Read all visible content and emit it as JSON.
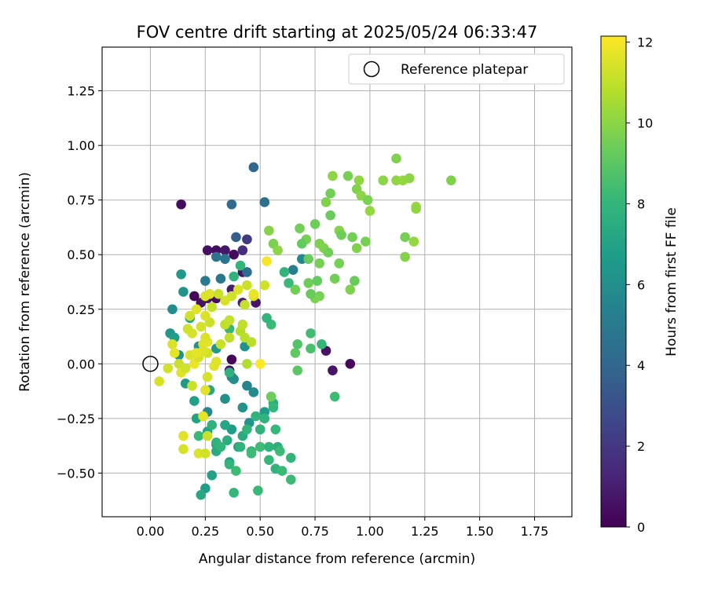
{
  "chart_data": {
    "type": "scatter",
    "title": "FOV centre drift starting at 2025/05/24 06:33:47",
    "xlabel": "Angular distance from reference (arcmin)",
    "ylabel": "Rotation from reference (arcmin)",
    "xlim": [
      -0.22,
      1.92
    ],
    "ylim": [
      -0.7,
      1.45
    ],
    "xticks": [
      0.0,
      0.25,
      0.5,
      0.75,
      1.0,
      1.25,
      1.5,
      1.75
    ],
    "xtick_labels": [
      "0.00",
      "0.25",
      "0.50",
      "0.75",
      "1.00",
      "1.25",
      "1.50",
      "1.75"
    ],
    "yticks": [
      -0.5,
      -0.25,
      0.0,
      0.25,
      0.5,
      0.75,
      1.0,
      1.25
    ],
    "ytick_labels": [
      "−0.50",
      "−0.25",
      "0.00",
      "0.25",
      "0.50",
      "0.75",
      "1.00",
      "1.25"
    ],
    "grid": true,
    "legend": {
      "position": "top-right",
      "entries": [
        "Reference platepar"
      ]
    },
    "reference_point": {
      "x": 0.0,
      "y": 0.0,
      "label": "Reference platepar"
    },
    "colorbar": {
      "label": "Hours from first FF file",
      "range": [
        0,
        12.15
      ],
      "ticks": [
        0,
        2,
        4,
        6,
        8,
        10,
        12
      ],
      "tick_labels": [
        "0",
        "2",
        "4",
        "6",
        "8",
        "10",
        "12"
      ],
      "colormap": "viridis"
    },
    "colormap_stops": [
      "#440154",
      "#482878",
      "#3e4989",
      "#31688e",
      "#26828e",
      "#1f9e89",
      "#35b779",
      "#6ece58",
      "#b5de2b",
      "#fde725"
    ],
    "series": [
      {
        "points": [
          [
            0.14,
            0.73
          ],
          [
            0.2,
            0.31
          ],
          [
            0.23,
            0.28
          ],
          [
            0.26,
            0.52
          ],
          [
            0.3,
            0.52
          ],
          [
            0.34,
            0.52
          ],
          [
            0.38,
            0.5
          ],
          [
            0.42,
            0.42
          ],
          [
            0.37,
            0.34
          ],
          [
            0.3,
            0.3
          ],
          [
            0.26,
            0.3
          ],
          [
            0.42,
            0.28
          ],
          [
            0.48,
            0.28
          ],
          [
            0.37,
            0.02
          ],
          [
            0.36,
            -0.03
          ],
          [
            0.42,
            0.52
          ],
          [
            0.8,
            0.06
          ],
          [
            0.83,
            -0.03
          ],
          [
            0.91,
            0.0
          ],
          [
            0.44,
            0.57
          ]
        ],
        "hours": [
          0.4,
          0.2,
          0.6,
          0.5,
          0.4,
          0.8,
          0.3,
          0.6,
          0.9,
          0.5,
          0.7,
          1.0,
          0.7,
          0.2,
          0.5,
          1.6,
          0.6,
          0.7,
          0.2,
          2.1
        ]
      },
      {
        "points": [
          [
            0.47,
            0.9
          ],
          [
            0.52,
            0.74
          ],
          [
            0.37,
            0.73
          ],
          [
            0.39,
            0.58
          ],
          [
            0.65,
            0.43
          ],
          [
            0.69,
            0.48
          ],
          [
            0.44,
            0.42
          ],
          [
            0.14,
            0.41
          ],
          [
            0.25,
            0.38
          ],
          [
            0.3,
            0.49
          ],
          [
            0.34,
            0.48
          ],
          [
            0.15,
            0.33
          ],
          [
            0.1,
            0.25
          ],
          [
            0.09,
            0.14
          ],
          [
            0.13,
            0.04
          ],
          [
            0.22,
            0.08
          ],
          [
            0.16,
            -0.09
          ],
          [
            0.2,
            -0.17
          ],
          [
            0.21,
            -0.25
          ],
          [
            0.26,
            -0.31
          ],
          [
            0.3,
            -0.37
          ],
          [
            0.28,
            -0.51
          ],
          [
            0.25,
            -0.57
          ],
          [
            0.23,
            -0.6
          ],
          [
            0.37,
            -0.06
          ],
          [
            0.38,
            -0.07
          ],
          [
            0.44,
            -0.1
          ],
          [
            0.47,
            -0.13
          ],
          [
            0.42,
            -0.2
          ],
          [
            0.37,
            -0.3
          ],
          [
            0.4,
            -0.38
          ],
          [
            0.3,
            -0.4
          ],
          [
            0.36,
            -0.45
          ],
          [
            0.32,
            0.39
          ],
          [
            0.18,
            0.21
          ],
          [
            0.11,
            0.12
          ],
          [
            0.3,
            0.07
          ],
          [
            0.43,
            0.08
          ],
          [
            0.26,
            -0.22
          ],
          [
            0.45,
            -0.27
          ],
          [
            0.52,
            -0.22
          ],
          [
            0.34,
            -0.28
          ],
          [
            0.42,
            -0.33
          ],
          [
            0.5,
            -0.3
          ],
          [
            0.27,
            -0.12
          ],
          [
            0.34,
            -0.16
          ]
        ],
        "hours": [
          4.0,
          4.4,
          4.2,
          3.6,
          5.2,
          5.7,
          4.3,
          6.5,
          5.0,
          4.6,
          4.8,
          6.2,
          6.0,
          6.4,
          6.3,
          6.1,
          6.6,
          6.9,
          7.0,
          7.1,
          7.2,
          7.0,
          6.8,
          7.3,
          5.3,
          6.0,
          5.5,
          5.8,
          6.2,
          6.7,
          7.1,
          7.4,
          6.9,
          4.9,
          7.2,
          6.8,
          6.5,
          6.1,
          5.8,
          6.3,
          6.7,
          7.2,
          7.4,
          6.8,
          7.3,
          6.1
        ]
      },
      {
        "points": [
          [
            0.24,
            -0.24
          ],
          [
            0.28,
            -0.28
          ],
          [
            0.35,
            -0.35
          ],
          [
            0.41,
            -0.38
          ],
          [
            0.46,
            -0.4
          ],
          [
            0.5,
            -0.38
          ],
          [
            0.54,
            -0.44
          ],
          [
            0.57,
            -0.48
          ],
          [
            0.6,
            -0.49
          ],
          [
            0.64,
            -0.43
          ],
          [
            0.64,
            -0.53
          ],
          [
            0.58,
            -0.38
          ],
          [
            0.54,
            -0.38
          ],
          [
            0.49,
            -0.58
          ],
          [
            0.38,
            -0.59
          ],
          [
            0.36,
            -0.46
          ],
          [
            0.39,
            -0.49
          ],
          [
            0.3,
            -0.36
          ],
          [
            0.32,
            -0.38
          ],
          [
            0.22,
            -0.33
          ],
          [
            0.55,
            -0.15
          ],
          [
            0.56,
            -0.18
          ],
          [
            0.57,
            -0.3
          ],
          [
            0.59,
            -0.4
          ],
          [
            0.48,
            -0.24
          ],
          [
            0.52,
            -0.25
          ],
          [
            0.44,
            -0.3
          ],
          [
            0.36,
            -0.04
          ],
          [
            0.36,
            0.16
          ],
          [
            0.55,
            0.18
          ],
          [
            0.53,
            0.21
          ],
          [
            0.84,
            -0.15
          ],
          [
            0.73,
            0.14
          ],
          [
            0.78,
            0.09
          ],
          [
            0.73,
            0.07
          ],
          [
            0.41,
            0.45
          ],
          [
            0.38,
            0.4
          ],
          [
            0.61,
            0.42
          ],
          [
            0.63,
            0.37
          ],
          [
            0.56,
            -0.2
          ],
          [
            0.46,
            -0.41
          ],
          [
            0.5,
            -0.3
          ]
        ],
        "hours": [
          8.1,
          7.8,
          7.6,
          7.9,
          8.0,
          8.3,
          8.1,
          7.9,
          8.2,
          8.0,
          8.3,
          7.7,
          7.9,
          8.2,
          8.1,
          8.0,
          8.3,
          7.8,
          8.0,
          8.2,
          8.0,
          7.6,
          8.1,
          8.3,
          7.9,
          7.8,
          8.0,
          7.8,
          8.1,
          8.2,
          8.0,
          8.3,
          8.4,
          8.1,
          8.6,
          8.0,
          7.8,
          7.9,
          8.2,
          8.1,
          8.3,
          7.9
        ]
      },
      {
        "points": [
          [
            0.9,
            0.86
          ],
          [
            0.83,
            0.86
          ],
          [
            0.82,
            0.78
          ],
          [
            0.8,
            0.74
          ],
          [
            0.82,
            0.68
          ],
          [
            0.75,
            0.64
          ],
          [
            0.68,
            0.62
          ],
          [
            0.71,
            0.57
          ],
          [
            0.69,
            0.55
          ],
          [
            0.77,
            0.55
          ],
          [
            0.79,
            0.53
          ],
          [
            0.81,
            0.51
          ],
          [
            0.77,
            0.46
          ],
          [
            0.72,
            0.48
          ],
          [
            0.86,
            0.61
          ],
          [
            0.87,
            0.59
          ],
          [
            0.92,
            0.58
          ],
          [
            0.94,
            0.53
          ],
          [
            0.98,
            0.56
          ],
          [
            0.86,
            0.46
          ],
          [
            0.84,
            0.39
          ],
          [
            0.93,
            0.38
          ],
          [
            0.91,
            0.34
          ],
          [
            0.76,
            0.38
          ],
          [
            0.72,
            0.37
          ],
          [
            0.77,
            0.31
          ],
          [
            0.75,
            0.3
          ],
          [
            0.73,
            0.32
          ],
          [
            0.66,
            0.34
          ],
          [
            0.54,
            0.61
          ],
          [
            0.56,
            0.55
          ],
          [
            0.58,
            0.52
          ],
          [
            0.67,
            0.09
          ],
          [
            0.66,
            0.05
          ],
          [
            0.67,
            -0.03
          ],
          [
            0.55,
            -0.15
          ],
          [
            0.95,
            0.84
          ],
          [
            0.94,
            0.8
          ],
          [
            0.96,
            0.77
          ],
          [
            0.99,
            0.75
          ],
          [
            1.0,
            0.7
          ],
          [
            1.06,
            0.84
          ],
          [
            1.12,
            0.84
          ],
          [
            1.12,
            0.94
          ],
          [
            1.15,
            0.84
          ],
          [
            1.18,
            0.85
          ],
          [
            1.21,
            0.72
          ],
          [
            1.21,
            0.71
          ],
          [
            1.16,
            0.58
          ],
          [
            1.2,
            0.56
          ],
          [
            1.16,
            0.49
          ],
          [
            1.37,
            0.84
          ]
        ],
        "hours": [
          9.6,
          10.0,
          9.5,
          9.8,
          9.3,
          9.4,
          9.5,
          9.6,
          9.2,
          9.7,
          9.8,
          9.5,
          9.6,
          9.3,
          9.9,
          9.4,
          9.5,
          9.8,
          9.6,
          9.6,
          9.5,
          9.3,
          9.8,
          9.2,
          9.4,
          9.6,
          9.7,
          9.3,
          9.5,
          9.9,
          9.7,
          10.0,
          8.8,
          9.1,
          9.0,
          9.4,
          10.1,
          9.8,
          10.0,
          9.7,
          10.2,
          10.0,
          10.1,
          9.8,
          10.2,
          10.0,
          10.3,
          10.1,
          9.6,
          10.2,
          9.9,
          9.8
        ]
      },
      {
        "points": [
          [
            0.04,
            -0.08
          ],
          [
            0.08,
            -0.02
          ],
          [
            0.1,
            0.09
          ],
          [
            0.11,
            0.05
          ],
          [
            0.13,
            0.0
          ],
          [
            0.14,
            -0.04
          ],
          [
            0.16,
            -0.02
          ],
          [
            0.18,
            0.04
          ],
          [
            0.19,
            -0.1
          ],
          [
            0.2,
            0.0
          ],
          [
            0.22,
            0.03
          ],
          [
            0.24,
            0.09
          ],
          [
            0.26,
            0.1
          ],
          [
            0.26,
            0.05
          ],
          [
            0.25,
            0.12
          ],
          [
            0.27,
            0.19
          ],
          [
            0.23,
            0.17
          ],
          [
            0.21,
            0.25
          ],
          [
            0.18,
            0.22
          ],
          [
            0.25,
            0.22
          ],
          [
            0.28,
            0.26
          ],
          [
            0.26,
            -0.06
          ],
          [
            0.25,
            -0.12
          ],
          [
            0.24,
            -0.24
          ],
          [
            0.22,
            -0.41
          ],
          [
            0.25,
            -0.41
          ],
          [
            0.15,
            -0.33
          ],
          [
            0.15,
            -0.39
          ],
          [
            0.26,
            -0.33
          ],
          [
            0.34,
            0.18
          ],
          [
            0.36,
            0.2
          ],
          [
            0.41,
            0.15
          ],
          [
            0.43,
            0.12
          ],
          [
            0.37,
            0.31
          ],
          [
            0.4,
            0.34
          ],
          [
            0.44,
            0.36
          ],
          [
            0.47,
            0.31
          ],
          [
            0.52,
            0.36
          ],
          [
            0.36,
            0.12
          ],
          [
            0.32,
            0.09
          ],
          [
            0.3,
            0.01
          ],
          [
            0.24,
            0.06
          ],
          [
            0.19,
            0.14
          ],
          [
            0.17,
            0.16
          ],
          [
            0.21,
            0.05
          ],
          [
            0.27,
            0.32
          ],
          [
            0.31,
            0.32
          ],
          [
            0.34,
            0.29
          ],
          [
            0.43,
            0.27
          ],
          [
            0.46,
            0.1
          ],
          [
            0.44,
            0.0
          ],
          [
            0.42,
            0.18
          ],
          [
            0.25,
            0.31
          ],
          [
            0.47,
            0.32
          ],
          [
            0.5,
            0.0
          ],
          [
            0.53,
            0.47
          ],
          [
            0.29,
            -0.01
          ]
        ],
        "hours": [
          11.4,
          11.3,
          11.5,
          11.7,
          11.2,
          11.6,
          11.3,
          11.5,
          11.2,
          11.8,
          11.4,
          11.6,
          11.7,
          11.3,
          11.5,
          11.2,
          11.4,
          11.6,
          11.3,
          11.5,
          11.1,
          11.4,
          11.6,
          11.7,
          11.5,
          11.3,
          11.6,
          11.4,
          11.2,
          11.0,
          11.1,
          10.8,
          10.9,
          11.3,
          11.5,
          11.2,
          11.4,
          11.3,
          11.0,
          11.2,
          11.6,
          11.5,
          11.4,
          11.3,
          11.7,
          11.6,
          11.2,
          11.4,
          11.1,
          10.9,
          10.7,
          11.0,
          11.5,
          11.8,
          12.1,
          12.0,
          11.6
        ]
      }
    ]
  }
}
